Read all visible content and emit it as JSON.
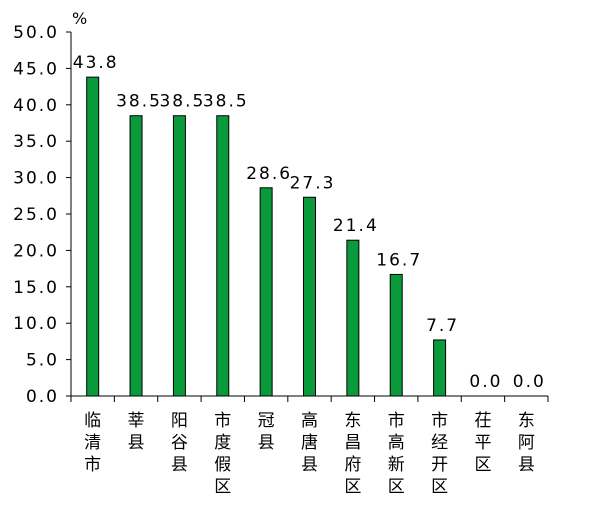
{
  "chart_data": {
    "type": "bar",
    "title": "",
    "ylabel": "%",
    "xlabel": "",
    "ylim": [
      0,
      50
    ],
    "y_tick_step": 5,
    "y_tick_labels": [
      "0.0",
      "5.0",
      "10.0",
      "15.0",
      "20.0",
      "25.0",
      "30.0",
      "35.0",
      "40.0",
      "45.0",
      "50.0"
    ],
    "categories": [
      "临清市",
      "莘县",
      "阳谷县",
      "市度假区",
      "冠县",
      "高唐县",
      "东昌府区",
      "市高新区",
      "市经开区",
      "茌平区",
      "东阿县"
    ],
    "values": [
      43.8,
      38.5,
      38.5,
      38.5,
      28.6,
      27.3,
      21.4,
      16.7,
      7.7,
      0.0,
      0.0
    ],
    "data_labels": [
      "43.8",
      "38.5",
      "38.5",
      "38.5",
      "28.6",
      "27.3",
      "21.4",
      "16.7",
      "7.7",
      "0.0",
      "0.0"
    ],
    "bar_color": "#0a9a3c",
    "bar_edge_color": "#000000",
    "grid": false,
    "legend": "none"
  }
}
